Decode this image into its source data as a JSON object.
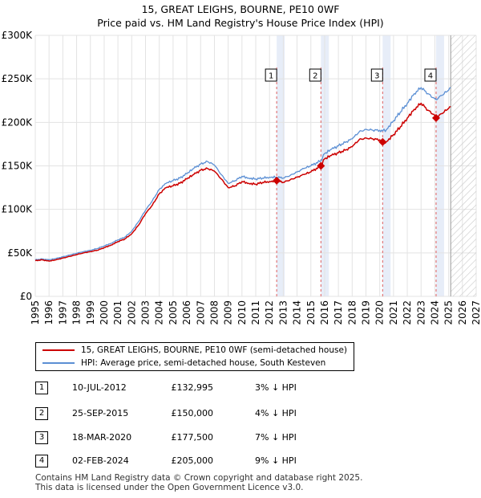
{
  "chart_data": {
    "type": "line",
    "title": "15, GREAT LEIGHS, BOURNE, PE10 0WF",
    "subtitle": "Price paid vs. HM Land Registry's House Price Index (HPI)",
    "xlim": [
      1995,
      2027
    ],
    "ylim": [
      0,
      300000
    ],
    "x_ticks": [
      "1995",
      "1996",
      "1997",
      "1998",
      "1999",
      "2000",
      "2001",
      "2002",
      "2003",
      "2004",
      "2005",
      "2006",
      "2007",
      "2008",
      "2009",
      "2010",
      "2011",
      "2012",
      "2013",
      "2014",
      "2015",
      "2016",
      "2017",
      "2018",
      "2019",
      "2020",
      "2021",
      "2022",
      "2023",
      "2024",
      "2025",
      "2026",
      "2027"
    ],
    "y_ticks": [
      {
        "value": 0,
        "label": "£0"
      },
      {
        "value": 50000,
        "label": "£50K"
      },
      {
        "value": 100000,
        "label": "£100K"
      },
      {
        "value": 150000,
        "label": "£150K"
      },
      {
        "value": 200000,
        "label": "£200K"
      },
      {
        "value": 250000,
        "label": "£250K"
      },
      {
        "value": 300000,
        "label": "£300K"
      }
    ],
    "forecast_start": 2025.15,
    "colors": {
      "property": "#cc0000",
      "hpi": "#5b8fd4",
      "event_line": "#e06060",
      "event_band": "#dde6f5"
    },
    "series": [
      {
        "name": "15, GREAT LEIGHS, BOURNE, PE10 0WF (semi-detached house)",
        "key": "property",
        "points": [
          [
            1995.0,
            41000
          ],
          [
            1995.5,
            42000
          ],
          [
            1996.0,
            40500
          ],
          [
            1996.5,
            42000
          ],
          [
            1997.0,
            44000
          ],
          [
            1997.5,
            46000
          ],
          [
            1998.0,
            48000
          ],
          [
            1998.5,
            50000
          ],
          [
            1999.0,
            51500
          ],
          [
            1999.5,
            53000
          ],
          [
            2000.0,
            56000
          ],
          [
            2000.5,
            59000
          ],
          [
            2001.0,
            63000
          ],
          [
            2001.5,
            66000
          ],
          [
            2002.0,
            72000
          ],
          [
            2002.5,
            82000
          ],
          [
            2003.0,
            95000
          ],
          [
            2003.5,
            105000
          ],
          [
            2004.0,
            118000
          ],
          [
            2004.5,
            125000
          ],
          [
            2005.0,
            127000
          ],
          [
            2005.5,
            130000
          ],
          [
            2006.0,
            135000
          ],
          [
            2006.5,
            140000
          ],
          [
            2007.0,
            145000
          ],
          [
            2007.5,
            147000
          ],
          [
            2008.0,
            144000
          ],
          [
            2008.5,
            135000
          ],
          [
            2009.0,
            125000
          ],
          [
            2009.5,
            127000
          ],
          [
            2010.0,
            132000
          ],
          [
            2010.5,
            130000
          ],
          [
            2011.0,
            129000
          ],
          [
            2011.5,
            131000
          ],
          [
            2012.0,
            132000
          ],
          [
            2012.52,
            132995
          ],
          [
            2013.0,
            131000
          ],
          [
            2013.5,
            134000
          ],
          [
            2014.0,
            137000
          ],
          [
            2014.5,
            140000
          ],
          [
            2015.0,
            143000
          ],
          [
            2015.73,
            150000
          ],
          [
            2016.0,
            158000
          ],
          [
            2016.5,
            162000
          ],
          [
            2017.0,
            165000
          ],
          [
            2017.5,
            168000
          ],
          [
            2018.0,
            172000
          ],
          [
            2018.5,
            180000
          ],
          [
            2019.0,
            182000
          ],
          [
            2019.5,
            181000
          ],
          [
            2020.0,
            180000
          ],
          [
            2020.21,
            177500
          ],
          [
            2020.5,
            178000
          ],
          [
            2021.0,
            186000
          ],
          [
            2021.5,
            195000
          ],
          [
            2022.0,
            205000
          ],
          [
            2022.5,
            215000
          ],
          [
            2023.0,
            222000
          ],
          [
            2023.5,
            214000
          ],
          [
            2024.0,
            208000
          ],
          [
            2024.09,
            205000
          ],
          [
            2024.5,
            210000
          ],
          [
            2025.0,
            216000
          ],
          [
            2025.15,
            218000
          ]
        ]
      },
      {
        "name": "HPI: Average price, semi-detached house, South Kesteven",
        "key": "hpi",
        "points": [
          [
            1995.0,
            42000
          ],
          [
            1995.5,
            43000
          ],
          [
            1996.0,
            42000
          ],
          [
            1996.5,
            43500
          ],
          [
            1997.0,
            45500
          ],
          [
            1997.5,
            47500
          ],
          [
            1998.0,
            49500
          ],
          [
            1998.5,
            51500
          ],
          [
            1999.0,
            53000
          ],
          [
            1999.5,
            55000
          ],
          [
            2000.0,
            58000
          ],
          [
            2000.5,
            61000
          ],
          [
            2001.0,
            65000
          ],
          [
            2001.5,
            68000
          ],
          [
            2002.0,
            75000
          ],
          [
            2002.5,
            86000
          ],
          [
            2003.0,
            99000
          ],
          [
            2003.5,
            110000
          ],
          [
            2004.0,
            123000
          ],
          [
            2004.5,
            130000
          ],
          [
            2005.0,
            133000
          ],
          [
            2005.5,
            136000
          ],
          [
            2006.0,
            141000
          ],
          [
            2006.5,
            147000
          ],
          [
            2007.0,
            152000
          ],
          [
            2007.5,
            155000
          ],
          [
            2008.0,
            151000
          ],
          [
            2008.5,
            140000
          ],
          [
            2009.0,
            130000
          ],
          [
            2009.5,
            133000
          ],
          [
            2010.0,
            138000
          ],
          [
            2010.5,
            136000
          ],
          [
            2011.0,
            135000
          ],
          [
            2011.5,
            136000
          ],
          [
            2012.0,
            137000
          ],
          [
            2012.52,
            137000
          ],
          [
            2013.0,
            136000
          ],
          [
            2013.5,
            139000
          ],
          [
            2014.0,
            143000
          ],
          [
            2014.5,
            147000
          ],
          [
            2015.0,
            150000
          ],
          [
            2015.73,
            156000
          ],
          [
            2016.0,
            164000
          ],
          [
            2016.5,
            169000
          ],
          [
            2017.0,
            173000
          ],
          [
            2017.5,
            177000
          ],
          [
            2018.0,
            181000
          ],
          [
            2018.5,
            189000
          ],
          [
            2019.0,
            192000
          ],
          [
            2019.5,
            191000
          ],
          [
            2020.0,
            191000
          ],
          [
            2020.21,
            190000
          ],
          [
            2020.5,
            192000
          ],
          [
            2021.0,
            202000
          ],
          [
            2021.5,
            212000
          ],
          [
            2022.0,
            222000
          ],
          [
            2022.5,
            233000
          ],
          [
            2023.0,
            240000
          ],
          [
            2023.5,
            233000
          ],
          [
            2024.0,
            227000
          ],
          [
            2024.09,
            226000
          ],
          [
            2024.5,
            231000
          ],
          [
            2025.0,
            237000
          ],
          [
            2025.15,
            240000
          ]
        ]
      }
    ],
    "events": [
      {
        "label": "1",
        "x": 2012.52,
        "value": 132995
      },
      {
        "label": "2",
        "x": 2015.73,
        "value": 150000
      },
      {
        "label": "3",
        "x": 2020.21,
        "value": 177500
      },
      {
        "label": "4",
        "x": 2024.09,
        "value": 205000
      }
    ]
  },
  "legend": {
    "property_label": "15, GREAT LEIGHS, BOURNE, PE10 0WF (semi-detached house)",
    "hpi_label": "HPI: Average price, semi-detached house, South Kesteven"
  },
  "transactions": [
    {
      "num": "1",
      "date": "10-JUL-2012",
      "price": "£132,995",
      "hpi": "3% ↓ HPI"
    },
    {
      "num": "2",
      "date": "25-SEP-2015",
      "price": "£150,000",
      "hpi": "4% ↓ HPI"
    },
    {
      "num": "3",
      "date": "18-MAR-2020",
      "price": "£177,500",
      "hpi": "7% ↓ HPI"
    },
    {
      "num": "4",
      "date": "02-FEB-2024",
      "price": "£205,000",
      "hpi": "9% ↓ HPI"
    }
  ],
  "footer": {
    "line1": "Contains HM Land Registry data © Crown copyright and database right 2025.",
    "line2": "This data is licensed under the Open Government Licence v3.0."
  }
}
